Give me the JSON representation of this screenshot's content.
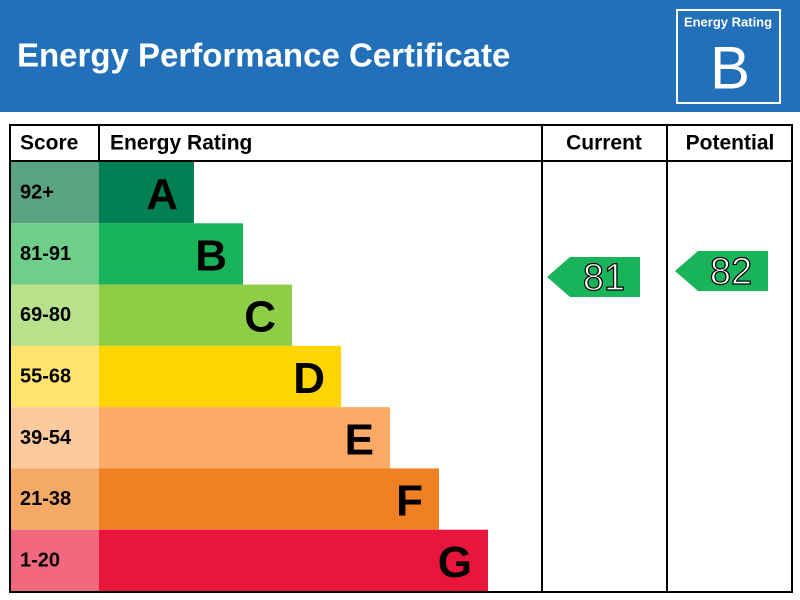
{
  "header": {
    "title": "Energy Performance Certificate",
    "badge": {
      "label": "Energy Rating",
      "rating": "B"
    }
  },
  "table": {
    "columns": [
      "Score",
      "Energy Rating",
      "Current",
      "Potential"
    ],
    "bands": [
      {
        "score": "92+",
        "rating": "A"
      },
      {
        "score": "81-91",
        "rating": "B"
      },
      {
        "score": "69-80",
        "rating": "C"
      },
      {
        "score": "55-68",
        "rating": "D"
      },
      {
        "score": "39-54",
        "rating": "E"
      },
      {
        "score": "21-38",
        "rating": "F"
      },
      {
        "score": "1-20",
        "rating": "G"
      }
    ],
    "current": 81,
    "potential": 82
  }
}
